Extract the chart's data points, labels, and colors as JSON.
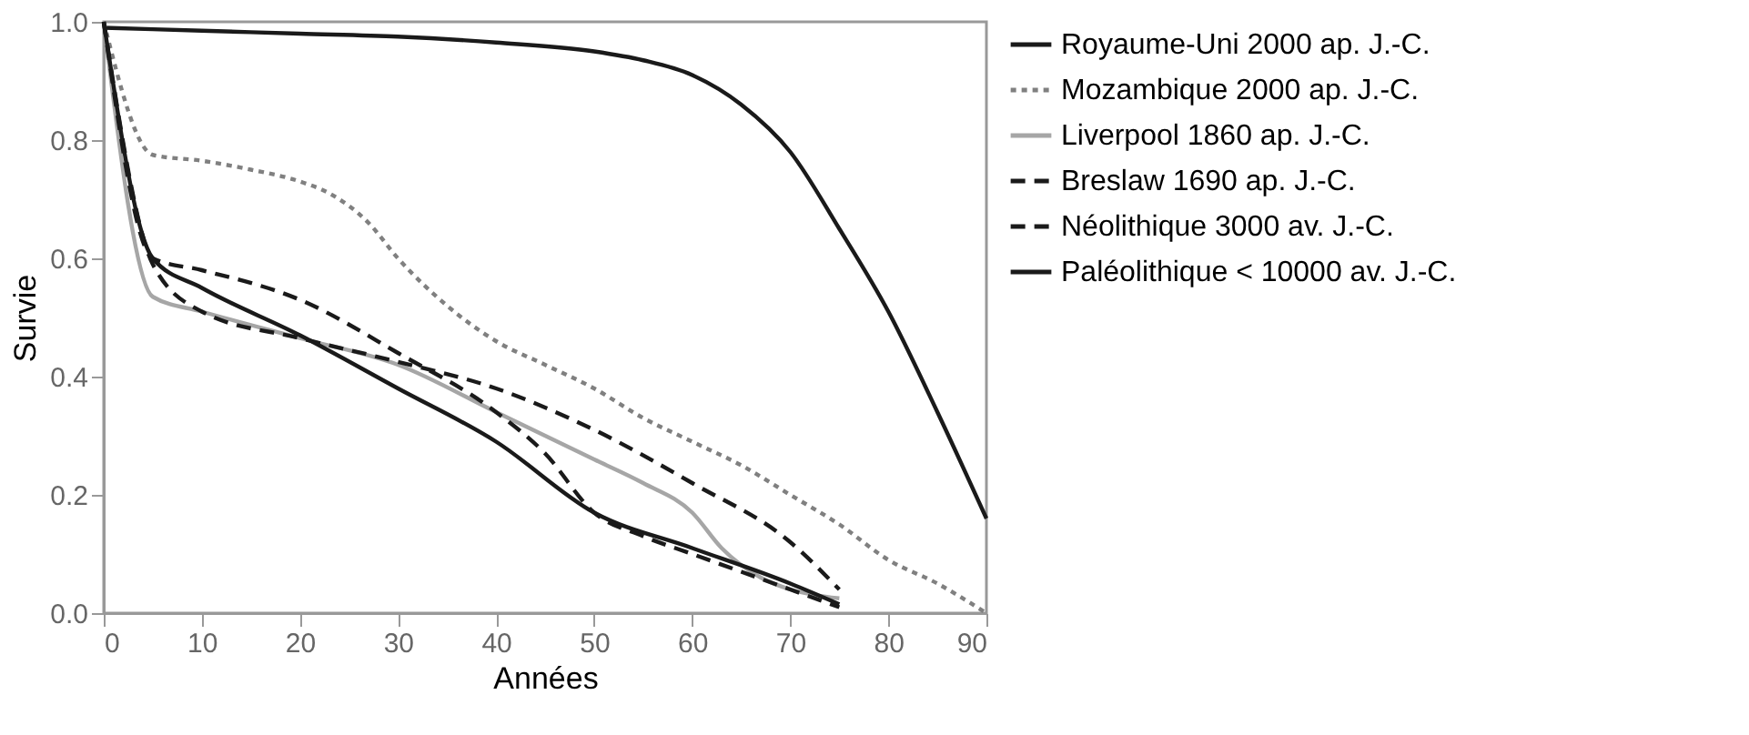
{
  "chart_data": {
    "type": "line",
    "xlabel": "Années",
    "ylabel": "Survie",
    "xlim": [
      0,
      90
    ],
    "xticks": [
      0,
      10,
      20,
      30,
      40,
      50,
      60,
      70,
      80,
      90
    ],
    "ylim": [
      0,
      1
    ],
    "yticks": [
      {
        "value": 0,
        "label": "0.0"
      },
      {
        "value": 0.2,
        "label": "0.2"
      },
      {
        "value": 0.4,
        "label": "0.4"
      },
      {
        "value": 0.6,
        "label": "0.6"
      },
      {
        "value": 0.8,
        "label": "0.8"
      },
      {
        "value": 1,
        "label": "1.0"
      }
    ],
    "grid": false,
    "legend": "right",
    "marker": "none",
    "series": [
      {
        "name": "Royaume-Uni 2000 ap. J.-C.",
        "color": "#1a1a1a",
        "line_style": "solid",
        "x": [
          0,
          10,
          20,
          30,
          40,
          50,
          55,
          60,
          65,
          70,
          75,
          80,
          85,
          90
        ],
        "values": [
          0.99,
          0.985,
          0.98,
          0.975,
          0.965,
          0.95,
          0.935,
          0.91,
          0.86,
          0.78,
          0.65,
          0.51,
          0.34,
          0.16
        ]
      },
      {
        "name": "Mozambique 2000 ap. J.-C.",
        "color": "#808080",
        "line_style": "dotted",
        "x": [
          0,
          5,
          10,
          15,
          20,
          23,
          27,
          30,
          35,
          40,
          45,
          50,
          55,
          60,
          65,
          70,
          75,
          80,
          85,
          90
        ],
        "values": [
          1.0,
          0.775,
          0.765,
          0.75,
          0.73,
          0.71,
          0.66,
          0.6,
          0.52,
          0.46,
          0.42,
          0.38,
          0.33,
          0.29,
          0.25,
          0.2,
          0.15,
          0.09,
          0.05,
          0.0
        ]
      },
      {
        "name": "Liverpool 1860 ap. J.-C.",
        "color": "#a6a6a6",
        "line_style": "solid",
        "x": [
          0,
          5,
          10,
          20,
          30,
          40,
          50,
          55,
          60,
          63,
          67,
          70,
          75
        ],
        "values": [
          1.0,
          0.535,
          0.51,
          0.465,
          0.42,
          0.34,
          0.26,
          0.22,
          0.17,
          0.11,
          0.06,
          0.04,
          0.025
        ]
      },
      {
        "name": "Breslaw 1690 ap. J.-C.",
        "color": "#1a1a1a",
        "line_style": "dashed",
        "x": [
          0,
          5,
          10,
          20,
          30,
          40,
          50,
          60,
          70,
          75
        ],
        "values": [
          1.0,
          0.59,
          0.51,
          0.465,
          0.425,
          0.38,
          0.31,
          0.22,
          0.12,
          0.04
        ]
      },
      {
        "name": "Néolithique 3000 av. J.-C.",
        "color": "#1a1a1a",
        "line_style": "dashed",
        "x": [
          0,
          5,
          10,
          20,
          30,
          40,
          45,
          50,
          55,
          60,
          65,
          70,
          75
        ],
        "values": [
          1.0,
          0.6,
          0.58,
          0.53,
          0.44,
          0.34,
          0.27,
          0.17,
          0.13,
          0.1,
          0.07,
          0.04,
          0.01
        ]
      },
      {
        "name": "Paléolithique < 10000 av. J.-C.",
        "color": "#1a1a1a",
        "line_style": "solid",
        "x": [
          0,
          5,
          10,
          20,
          30,
          40,
          50,
          60,
          70,
          75
        ],
        "values": [
          1.0,
          0.6,
          0.55,
          0.47,
          0.38,
          0.29,
          0.17,
          0.11,
          0.05,
          0.015
        ]
      }
    ]
  }
}
